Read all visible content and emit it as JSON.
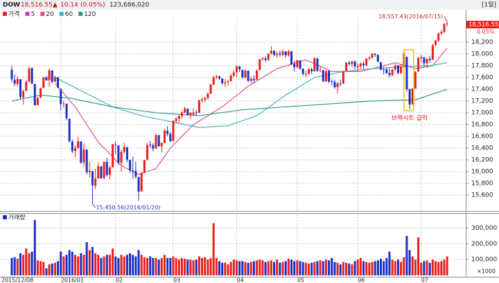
{
  "header": {
    "symbol": "DOW",
    "price": "18,516.55",
    "arrow": "▲",
    "change": "10.14",
    "change_pct": "(0.05%)",
    "volume": "123,686,020",
    "period": "[1일]"
  },
  "chart_data": {
    "type": "candlestick",
    "legend": [
      {
        "name": "가격",
        "color": "#e8201c"
      },
      {
        "name": "5",
        "color": "#c040c0"
      },
      {
        "name": "20",
        "color": "#e05080"
      },
      {
        "name": "60",
        "color": "#40b0c0"
      },
      {
        "name": "120",
        "color": "#2a9a80"
      }
    ],
    "up_color": "#e8201c",
    "down_color": "#1a2fc8",
    "grid": true,
    "ylim": [
      15330,
      18610
    ],
    "yticks": [
      {
        "value": 15600,
        "label": "15,600"
      },
      {
        "value": 15800,
        "label": "15,800"
      },
      {
        "value": 16000,
        "label": "16,000"
      },
      {
        "value": 16200,
        "label": "16,200"
      },
      {
        "value": 16400,
        "label": "16,400"
      },
      {
        "value": 16600,
        "label": "16,600"
      },
      {
        "value": 16800,
        "label": "16,800"
      },
      {
        "value": 17000,
        "label": "17,000"
      },
      {
        "value": 17200,
        "label": "17,200"
      },
      {
        "value": 17400,
        "label": "17,400"
      },
      {
        "value": 17600,
        "label": "17,600"
      },
      {
        "value": 17800,
        "label": "17,800"
      },
      {
        "value": 18000,
        "label": "18,000"
      },
      {
        "value": 18200,
        "label": "18,200"
      }
    ],
    "xticks": [
      {
        "value": 0,
        "label": "2015/12/08"
      },
      {
        "value": 17,
        "label": "2016/01"
      },
      {
        "value": 36,
        "label": "02"
      },
      {
        "value": 56,
        "label": "03"
      },
      {
        "value": 78,
        "label": "04"
      },
      {
        "value": 99,
        "label": "05"
      },
      {
        "value": 120,
        "label": "06"
      },
      {
        "value": 142,
        "label": "07"
      }
    ],
    "open": [
      17730,
      17560,
      17490,
      17570,
      17260,
      17370,
      17530,
      17760,
      17490,
      17130,
      17255,
      17420,
      17600,
      17555,
      17720,
      17530,
      17600,
      17405,
      17147,
      17154,
      16900,
      16510,
      16350,
      16400,
      16510,
      16155,
      16375,
      15990,
      16010,
      15760,
      15885,
      16090,
      15890,
      16165,
      15950,
      16075,
      16460,
      16445,
      16150,
      16335,
      16415,
      16200,
      16020,
      16010,
      15910,
      15665,
      15980,
      16195,
      16460,
      16450,
      16390,
      16620,
      16430,
      16485,
      16695,
      16640,
      16520,
      16862,
      16895,
      16945,
      17005,
      17070,
      16960,
      16970,
      17005,
      17000,
      17215,
      17225,
      17250,
      17325,
      17480,
      17600,
      17620,
      17580,
      17500,
      17520,
      17540,
      17630,
      17685,
      17790,
      17730,
      17600,
      17715,
      17540,
      17575,
      17560,
      17725,
      17910,
      17920,
      17900,
      18005,
      18050,
      17980,
      18005,
      17985,
      18040,
      17975,
      18045,
      17830,
      17775,
      17890,
      17745,
      17650,
      17665,
      17740,
      17705,
      17925,
      17710,
      17720,
      17530,
      17710,
      17540,
      17525,
      17435,
      17500,
      17495,
      17710,
      17850,
      17830,
      17870,
      17770,
      17790,
      17835,
      17805,
      17920,
      17935,
      18005,
      17985,
      17860,
      17740,
      17735,
      17675,
      17640,
      17735,
      17805,
      17675,
      17780,
      17950,
      17400,
      17140,
      17410,
      17700,
      17925,
      17945,
      17840,
      17915,
      17900,
      18150,
      18225,
      18345,
      18370,
      18505
    ],
    "high": [
      17800,
      17650,
      17630,
      17570,
      17390,
      17560,
      17790,
      17770,
      17490,
      17270,
      17420,
      17610,
      17620,
      17750,
      17720,
      17630,
      17610,
      17405,
      17200,
      17154,
      16900,
      16540,
      16450,
      16590,
      16520,
      16480,
      16375,
      16170,
      16010,
      16050,
      16160,
      16090,
      16170,
      16235,
      16100,
      16470,
      16510,
      16445,
      16370,
      16490,
      16415,
      16200,
      16250,
      16170,
      15910,
      16000,
      16200,
      16490,
      16520,
      16480,
      16650,
      16620,
      16500,
      16720,
      16770,
      16670,
      16870,
      16930,
      16960,
      17030,
      17100,
      17070,
      17010,
      17080,
      17050,
      17220,
      17260,
      17270,
      17340,
      17490,
      17630,
      17640,
      17630,
      17590,
      17570,
      17560,
      17660,
      17720,
      17800,
      17790,
      17730,
      17740,
      17715,
      17620,
      17630,
      17730,
      17920,
      17950,
      17960,
      18010,
      18130,
      18070,
      18040,
      18060,
      18080,
      18050,
      18070,
      18050,
      17880,
      17900,
      17890,
      17760,
      17710,
      17760,
      17770,
      17940,
      17925,
      17790,
      17730,
      17720,
      17720,
      17570,
      17560,
      17520,
      17560,
      17710,
      17860,
      17880,
      17880,
      17890,
      17840,
      17850,
      17870,
      17930,
      17960,
      18010,
      18010,
      17985,
      17860,
      17780,
      17760,
      17760,
      17750,
      17830,
      17810,
      17830,
      18020,
      17950,
      17410,
      17420,
      17710,
      17950,
      17980,
      17945,
      17920,
      17970,
      18170,
      18240,
      18370,
      18400,
      18530,
      18557.43
    ],
    "low": [
      17520,
      17450,
      17450,
      17230,
      17140,
      17370,
      17520,
      17490,
      17120,
      17130,
      17250,
      17420,
      17540,
      17440,
      17500,
      17520,
      17420,
      17040,
      17080,
      16870,
      16500,
      16310,
      16240,
      16390,
      16130,
      16080,
      15950,
      15900,
      15450.56,
      15700,
      15880,
      15880,
      15870,
      15920,
      15870,
      16070,
      16300,
      16120,
      16000,
      16300,
      16160,
      15980,
      15880,
      15880,
      15503,
      15660,
      15980,
      16195,
      16400,
      16340,
      16390,
      16420,
      16330,
      16485,
      16600,
      16500,
      16510,
      16820,
      16830,
      16900,
      16990,
      16950,
      16900,
      16950,
      16950,
      17000,
      17170,
      17180,
      17220,
      17320,
      17470,
      17570,
      17560,
      17480,
      17440,
      17460,
      17520,
      17600,
      17600,
      17690,
      17580,
      17580,
      17520,
      17500,
      17500,
      17560,
      17720,
      17880,
      17860,
      17880,
      17990,
      17960,
      17930,
      17950,
      17960,
      17930,
      17950,
      17810,
      17700,
      17760,
      17730,
      17630,
      17600,
      17640,
      17660,
      17700,
      17700,
      17690,
      17520,
      17530,
      17500,
      17470,
      17410,
      17330,
      17450,
      17490,
      17700,
      17800,
      17780,
      17740,
      17710,
      17740,
      17740,
      17790,
      17890,
      17920,
      17950,
      17860,
      17720,
      17650,
      17660,
      17600,
      17620,
      17700,
      17650,
      17660,
      17770,
      17360,
      17060,
      17140,
      17410,
      17700,
      17860,
      17790,
      17770,
      17850,
      17900,
      18130,
      18200,
      18320,
      18360,
      18470
    ],
    "close": [
      17568,
      17493,
      17575,
      17265,
      17368,
      17525,
      17750,
      17495,
      17128,
      17251,
      17418,
      17603,
      17552,
      17720,
      17526,
      17603,
      17425,
      17149,
      17158,
      16907,
      16515,
      16347,
      16399,
      16516,
      16152,
      16379,
      15988,
      16016,
      15766,
      15882,
      16094,
      15885,
      16168,
      15945,
      16070,
      16466,
      16450,
      16154,
      16336,
      16417,
      16205,
      16027,
      16014,
      15915,
      15660,
      15974,
      16196,
      16454,
      16453,
      16392,
      16620,
      16431,
      16485,
      16698,
      16640,
      16517,
      16865,
      16899,
      16943,
      17006,
      17073,
      16964,
      17000,
      17000,
      16996,
      17213,
      17229,
      17251,
      17326,
      17481,
      17602,
      17623,
      17582,
      17502,
      17516,
      17535,
      17633,
      17685,
      17792,
      17737,
      17603,
      17716,
      17542,
      17577,
      17556,
      17721,
      17908,
      17926,
      17897,
      18004,
      18053,
      17982,
      18003,
      17990,
      18041,
      17977,
      18041,
      17830,
      17774,
      17891,
      17750,
      17661,
      17660,
      17740,
      17705,
      17928,
      17711,
      17720,
      17535,
      17711,
      17529,
      17527,
      17435,
      17500,
      17493,
      17706,
      17851,
      17828,
      17873,
      17787,
      17789,
      17838,
      17807,
      17920,
      17938,
      18005,
      17985,
      17865,
      17733,
      17732,
      17674,
      17640,
      17733,
      17805,
      17675,
      17780,
      18011,
      17400,
      17140,
      17409,
      17695,
      17930,
      17949,
      17841,
      17918,
      17895,
      18146,
      18226,
      18347,
      18372,
      18507,
      18516.55
    ],
    "moving_averages": [
      {
        "name": "20",
        "color": "#e05080",
        "x": [
          15,
          22,
          30,
          38,
          44,
          50,
          55,
          63,
          73,
          82,
          92,
          102,
          111,
          121,
          133,
          140,
          146,
          151
        ],
        "values": [
          17500,
          17100,
          16500,
          16100,
          15950,
          16050,
          16400,
          16800,
          17100,
          17450,
          17750,
          17900,
          17700,
          17700,
          17850,
          17750,
          17800,
          18100
        ]
      },
      {
        "name": "60",
        "color": "#40b0c0",
        "x": [
          15,
          25,
          35,
          45,
          55,
          65,
          75,
          85,
          95,
          105,
          115,
          125,
          135,
          145,
          151
        ],
        "values": [
          17600,
          17350,
          17100,
          16950,
          16850,
          16750,
          16780,
          16950,
          17300,
          17600,
          17700,
          17750,
          17780,
          17800,
          17850
        ]
      },
      {
        "name": "120",
        "color": "#2a9a80",
        "x": [
          0,
          10,
          20,
          35,
          50,
          65,
          80,
          95,
          110,
          125,
          140,
          151
        ],
        "values": [
          17200,
          17300,
          17250,
          17100,
          17000,
          16950,
          17050,
          17100,
          17150,
          17200,
          17220,
          17400
        ]
      }
    ],
    "annotations": {
      "high": "18,557.43(2016/07/15)",
      "low": "15,450.56(2016/01/20)",
      "event": "브렉시트 급락"
    },
    "price_tag_sub": "0.05%",
    "volume": {
      "title": "거래량",
      "unit": "×1000",
      "ylim": [
        0,
        350000
      ],
      "yticks": [
        {
          "value": 100000,
          "label": "100,000"
        },
        {
          "value": 200000,
          "label": "200,000"
        },
        {
          "value": 300000,
          "label": "300,000"
        }
      ],
      "values": [
        110000,
        115000,
        105000,
        140000,
        130000,
        170000,
        140000,
        150000,
        350000,
        95000,
        90000,
        85000,
        45000,
        70000,
        75000,
        80000,
        90000,
        150000,
        120000,
        130000,
        160000,
        150000,
        130000,
        120000,
        140000,
        130000,
        210000,
        160000,
        180000,
        140000,
        130000,
        110000,
        120000,
        130000,
        130000,
        170000,
        120000,
        110000,
        130000,
        120000,
        130000,
        140000,
        130000,
        120000,
        160000,
        130000,
        115000,
        110000,
        120000,
        110000,
        110000,
        100000,
        110000,
        130000,
        110000,
        110000,
        120000,
        110000,
        100000,
        110000,
        105000,
        100000,
        100000,
        95000,
        100000,
        120000,
        110000,
        115000,
        100000,
        110000,
        330000,
        110000,
        90000,
        80000,
        80000,
        70000,
        85000,
        100000,
        95000,
        90000,
        90000,
        85000,
        80000,
        85000,
        90000,
        95000,
        100000,
        95000,
        85000,
        90000,
        95000,
        85000,
        100000,
        80000,
        85000,
        90000,
        105000,
        100000,
        90000,
        95000,
        90000,
        85000,
        80000,
        75000,
        80000,
        85000,
        90000,
        95000,
        90000,
        100000,
        95000,
        110000,
        85000,
        80000,
        70000,
        85000,
        80000,
        75000,
        70000,
        90000,
        100000,
        110000,
        90000,
        85000,
        80000,
        85000,
        90000,
        95000,
        105000,
        90000,
        110000,
        150000,
        100000,
        90000,
        100000,
        85000,
        115000,
        250000,
        160000,
        120000,
        100000,
        240000,
        80000,
        90000,
        95000,
        80000,
        100000,
        90000,
        85000,
        90000,
        100000,
        120000
      ]
    }
  }
}
